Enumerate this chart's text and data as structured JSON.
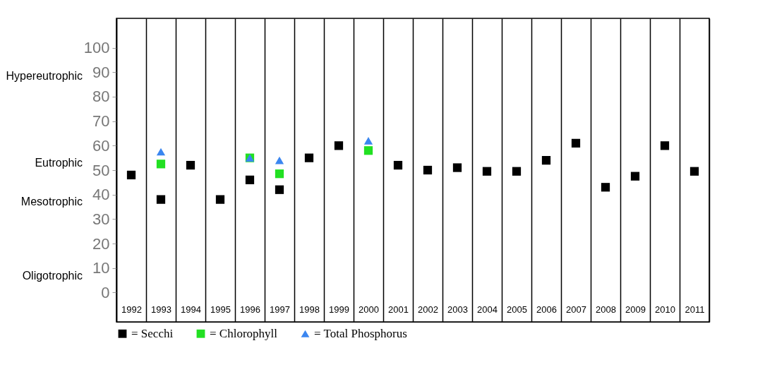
{
  "chart_data": {
    "type": "scatter",
    "categories": [
      "1992",
      "1993",
      "1994",
      "1995",
      "1996",
      "1997",
      "1998",
      "1999",
      "2000",
      "2001",
      "2002",
      "2003",
      "2004",
      "2005",
      "2006",
      "2007",
      "2008",
      "2009",
      "2010",
      "2011"
    ],
    "series": [
      {
        "name": "= Secchi",
        "color": "#000000",
        "marker": "square",
        "values": [
          48,
          38,
          52,
          38,
          46,
          42,
          55,
          60,
          null,
          52,
          50,
          51,
          49.5,
          49.5,
          54,
          61,
          43,
          47.5,
          60,
          49.5
        ]
      },
      {
        "name": "= Chlorophyll",
        "color": "#22e022",
        "marker": "square",
        "values": [
          null,
          52.5,
          null,
          null,
          55,
          48.5,
          null,
          null,
          58,
          null,
          null,
          null,
          null,
          null,
          null,
          null,
          null,
          null,
          null,
          null
        ]
      },
      {
        "name": "= Total Phosphorus",
        "color": "#3a86f0",
        "marker": "triangle",
        "values": [
          null,
          57.5,
          null,
          null,
          55,
          54,
          null,
          null,
          62,
          null,
          null,
          null,
          null,
          null,
          null,
          null,
          null,
          null,
          null,
          null
        ]
      }
    ],
    "ylim": [
      -12,
      112
    ],
    "yticks": [
      0,
      10,
      20,
      30,
      40,
      50,
      60,
      70,
      80,
      90,
      100
    ],
    "annotations": [
      "Hypereutrophic",
      "Eutrophic",
      "Mesotrophic",
      "Oligotrophic"
    ],
    "grid": "x",
    "legend": "bottom left"
  }
}
